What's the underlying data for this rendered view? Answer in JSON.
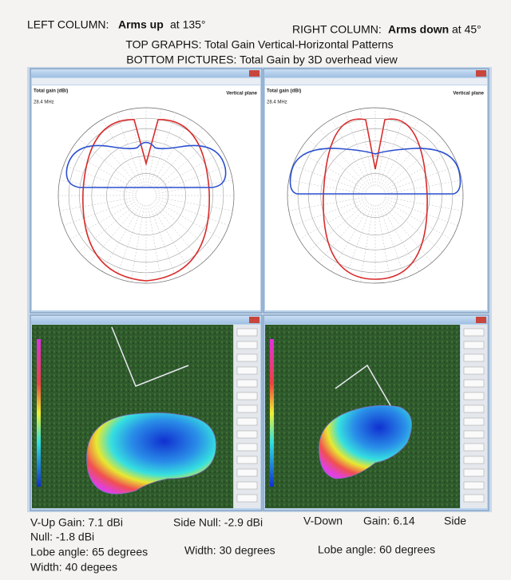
{
  "header": {
    "left_prefix": "LEFT COLUMN:",
    "left_bold": "Arms up",
    "left_suffix": "at 135°",
    "right_prefix": "RIGHT COLUMN:",
    "right_bold": "Arms down",
    "right_suffix": "at 45°",
    "line2": "TOP GRAPHS:  Total Gain Vertical-Horizontal Patterns",
    "line3": "BOTTOM PICTURES: Total Gain by 3D overhead view"
  },
  "windows": [
    {
      "plot_title": "Vertical plane",
      "gain_label": "Total gain (dBi)",
      "freq": "28.4 MHz"
    },
    {
      "plot_title": "Vertical plane",
      "gain_label": "Total gain (dBi)",
      "freq": "28.4 MHz"
    }
  ],
  "captions": {
    "left_line1a": "V-Up  Gain: 7.1 dBi",
    "left_line1b": "Side Null: -2.9 dBi",
    "left_line2": "Null: -1.8 dBi",
    "left_line3a": "Lobe angle: 65 degrees",
    "left_line3b": "Width: 30 degrees",
    "left_line4": "Width: 40 degees",
    "right_line1a": "V-Down",
    "right_line1b": "Gain: 6.14",
    "right_line1c": "Side",
    "right_line3": "Lobe angle: 60 degrees"
  }
}
